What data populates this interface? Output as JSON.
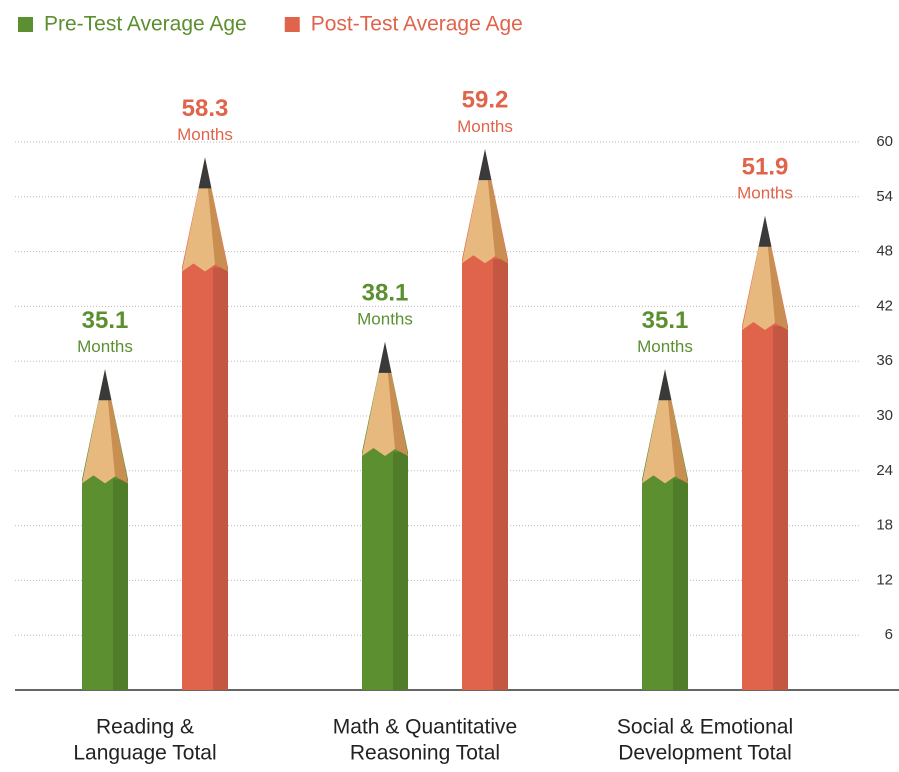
{
  "chart_data": {
    "type": "bar",
    "categories": [
      [
        "Reading &",
        "Language Total"
      ],
      [
        "Math & Quantitative",
        "Reasoning Total"
      ],
      [
        "Social & Emotional",
        "Development Total"
      ]
    ],
    "series": [
      {
        "name": "Pre-Test Average Age",
        "color": "#5b8f2f",
        "values": [
          35.1,
          38.1,
          35.1
        ]
      },
      {
        "name": "Post-Test Average Age",
        "color": "#e0644b",
        "values": [
          58.3,
          59.2,
          51.9
        ]
      }
    ],
    "unit_label": "Months",
    "ylim": [
      0,
      60
    ],
    "yticks": [
      6,
      12,
      18,
      24,
      30,
      36,
      42,
      48,
      54,
      60
    ],
    "grid": true,
    "legend": "top-left"
  }
}
